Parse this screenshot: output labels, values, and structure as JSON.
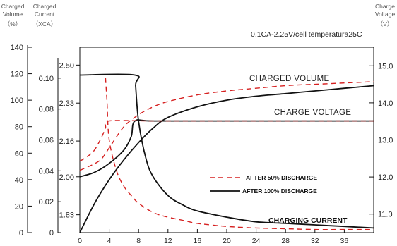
{
  "chart_data": {
    "type": "line",
    "conditions": "0.1CA-2.25V/cell temperatura25C",
    "axes": {
      "x": {
        "ticks": [
          0,
          4,
          8,
          12,
          16,
          20,
          24,
          28,
          32,
          36
        ],
        "range": [
          0,
          40
        ]
      },
      "volume": {
        "label_lines": [
          "Charged",
          "Volume",
          "（%）"
        ],
        "ticks": [
          0,
          20,
          40,
          60,
          80,
          100,
          120,
          140
        ],
        "range": [
          0,
          140
        ]
      },
      "current": {
        "label_lines": [
          "Charged",
          "Current",
          "（XCA）"
        ],
        "ticks": [
          "0",
          "0.02",
          "0.04",
          "0.06",
          "0.08",
          "0.10"
        ],
        "range": [
          0,
          0.12
        ]
      },
      "cell_voltage": {
        "ticks": [
          "1.83",
          "2.00",
          "2.16",
          "2.33",
          "2.50"
        ],
        "range": [
          1.75,
          2.58
        ]
      },
      "battery_voltage": {
        "label_lines": [
          "Charge",
          "Voltage",
          "（V）"
        ],
        "ticks": [
          "11.0",
          "12.0",
          "13.0",
          "14.0",
          "15.0"
        ],
        "range": [
          10.5,
          15.5
        ]
      }
    },
    "annotations": {
      "charged_volume": "CHARGED VOLUME",
      "charge_voltage": "CHARGE VOLTAGE",
      "charging_current": "CHARGING CURRENT"
    },
    "legend": {
      "position": "center-right",
      "entries": [
        {
          "label": "AFTER 50% DISCHARGE",
          "style": "dashed",
          "color": "#d62020"
        },
        {
          "label": "AFTER 100% DISCHARGE",
          "style": "solid",
          "color": "#111111"
        }
      ]
    },
    "series": [
      {
        "group": "after-100",
        "quantity": "charged volume",
        "axis": "volume",
        "x": [
          0,
          2,
          4,
          6,
          8,
          10,
          12,
          16,
          20,
          24,
          28,
          32,
          36,
          40
        ],
        "y": [
          0,
          22,
          40,
          55,
          68,
          79,
          87,
          95,
          100,
          103,
          105,
          107,
          109,
          111
        ]
      },
      {
        "group": "after-100",
        "quantity": "charge voltage",
        "axis": "cell_voltage",
        "x": [
          0,
          2,
          4,
          6,
          7,
          7.5,
          10,
          20,
          30,
          40
        ],
        "y": [
          2.0,
          2.02,
          2.06,
          2.12,
          2.18,
          2.25,
          2.25,
          2.25,
          2.25,
          2.25
        ]
      },
      {
        "group": "after-100",
        "quantity": "charging current",
        "axis": "current",
        "x": [
          0,
          7.5,
          7.6,
          8,
          9,
          10,
          12,
          14,
          16,
          20,
          24,
          28,
          32,
          36,
          40
        ],
        "y": [
          0.102,
          0.102,
          0.095,
          0.072,
          0.048,
          0.036,
          0.024,
          0.018,
          0.014,
          0.01,
          0.007,
          0.006,
          0.005,
          0.004,
          0.003
        ]
      },
      {
        "group": "after-50",
        "quantity": "charged volume",
        "axis": "volume",
        "x": [
          0,
          2,
          3,
          4,
          6,
          8,
          10,
          12,
          16,
          20,
          24,
          28,
          32,
          36,
          40
        ],
        "y": [
          47,
          52,
          56,
          64,
          80,
          89,
          95,
          99,
          104,
          107,
          109,
          111,
          112,
          113,
          114
        ]
      },
      {
        "group": "after-50",
        "quantity": "charge voltage",
        "axis": "cell_voltage",
        "x": [
          0,
          1,
          2,
          3,
          3.5,
          4,
          10,
          20,
          30,
          40
        ],
        "y": [
          2.07,
          2.09,
          2.12,
          2.18,
          2.22,
          2.25,
          2.25,
          2.25,
          2.25,
          2.25
        ]
      },
      {
        "group": "after-50",
        "quantity": "charging current",
        "axis": "current",
        "x": [
          3.5,
          3.7,
          4,
          5,
          6,
          7,
          8,
          10,
          12,
          14,
          16,
          20,
          24,
          28,
          32,
          36,
          40
        ],
        "y": [
          0.1,
          0.085,
          0.06,
          0.04,
          0.03,
          0.024,
          0.019,
          0.013,
          0.01,
          0.008,
          0.006,
          0.004,
          0.003,
          0.0025,
          0.002,
          0.002,
          0.002
        ]
      }
    ]
  }
}
